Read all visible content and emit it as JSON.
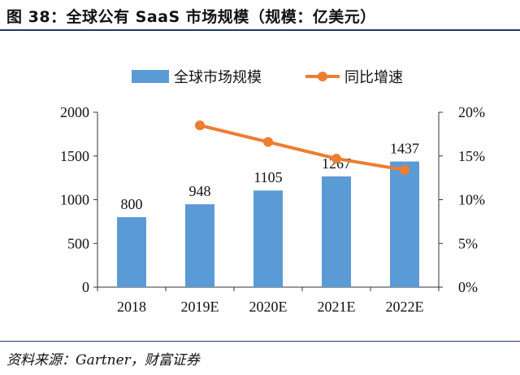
{
  "header": {
    "title": "图 38：全球公有 SaaS 市场规模（规模：亿美元）"
  },
  "footer": {
    "source": "资料来源：Gartner，财富证券"
  },
  "colors": {
    "bar": "#5b9bd5",
    "line": "#ed7d31",
    "rule": "#1f3864"
  },
  "chart_data": {
    "type": "bar",
    "title": "全球公有 SaaS 市场规模（规模：亿美元）",
    "categories": [
      "2018",
      "2019E",
      "2020E",
      "2021E",
      "2022E"
    ],
    "series": [
      {
        "name": "全球市场规模",
        "type": "bar",
        "axis": "left",
        "values": [
          800,
          948,
          1105,
          1267,
          1437
        ],
        "labels": [
          "800",
          "948",
          "1105",
          "1267",
          "1437"
        ]
      },
      {
        "name": "同比增速",
        "type": "line",
        "axis": "right",
        "values": [
          null,
          18.5,
          16.6,
          14.7,
          13.4
        ]
      }
    ],
    "y_left": {
      "min": 0,
      "max": 2000,
      "ticks": [
        0,
        500,
        1000,
        1500,
        2000
      ],
      "tick_labels": [
        "0",
        "500",
        "1000",
        "1500",
        "2000"
      ]
    },
    "y_right": {
      "min": 0,
      "max": 20,
      "ticks": [
        0,
        5,
        10,
        15,
        20
      ],
      "tick_labels": [
        "0%",
        "5%",
        "10%",
        "15%",
        "20%"
      ]
    },
    "legend": "top-center",
    "grid": false
  }
}
